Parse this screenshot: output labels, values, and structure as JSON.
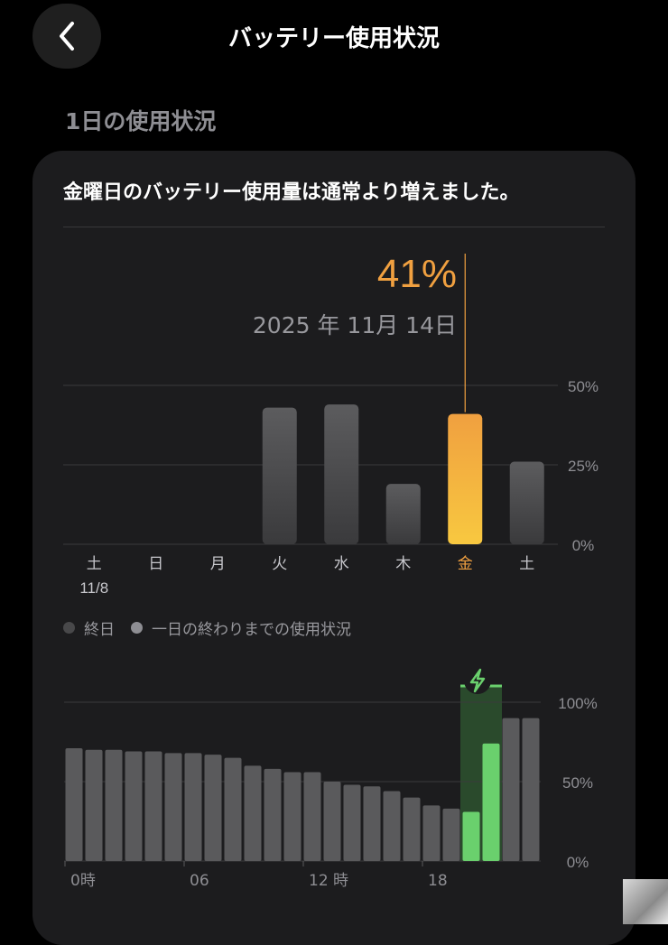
{
  "header": {
    "title": "バッテリー使用状況",
    "back_icon": "chevron-left-icon"
  },
  "section": {
    "title": "1日の使用状況"
  },
  "card": {
    "headline": "金曜日のバッテリー使用量は通常より増えました。",
    "selected": {
      "percent": "41%",
      "date": "2025 年 11月 14日"
    }
  },
  "legend": [
    {
      "label": "終日",
      "color": "#48484a"
    },
    {
      "label": "一日の終わりまでの使用状況",
      "color": "#8e8e93"
    }
  ],
  "chart_data": [
    {
      "type": "bar",
      "title": "",
      "categories": [
        "土",
        "日",
        "月",
        "火",
        "水",
        "木",
        "金",
        "土"
      ],
      "sub_labels": [
        "11/8",
        "",
        "",
        "",
        "",
        "",
        "",
        ""
      ],
      "values": [
        0,
        0,
        0,
        43,
        44,
        19,
        41,
        26
      ],
      "selected_index": 6,
      "ylim": [
        0,
        50
      ],
      "yticks": [
        "0%",
        "25%",
        "50%"
      ],
      "ytick_values": [
        0,
        25,
        50
      ],
      "grid": true,
      "colors": {
        "bar": "#5a5a5c",
        "selected_top": "#f0a040",
        "selected_bottom": "#f8c840",
        "selected_label": "#f0a040",
        "label": "#c7c7cc"
      }
    },
    {
      "type": "bar",
      "title": "",
      "xticks": [
        "0時",
        "06",
        "12 時",
        "18"
      ],
      "xtick_hours": [
        0,
        6,
        12,
        18
      ],
      "values": [
        71,
        70,
        70,
        69,
        69,
        68,
        68,
        67,
        65,
        60,
        58,
        56,
        56,
        50,
        48,
        47,
        44,
        40,
        35,
        33,
        31,
        74,
        90,
        90
      ],
      "charging_hours": [
        20,
        21
      ],
      "ylim": [
        0,
        100
      ],
      "yticks": [
        "0%",
        "50%",
        "100%"
      ],
      "ytick_values": [
        0,
        50,
        100
      ],
      "grid": true,
      "charging_icon": "lightning-bolt-icon",
      "colors": {
        "bar": "#5a5a5c",
        "charging": "#6ad06d",
        "charging_band": "#2f5a31",
        "label": "#8e8e93"
      }
    }
  ]
}
